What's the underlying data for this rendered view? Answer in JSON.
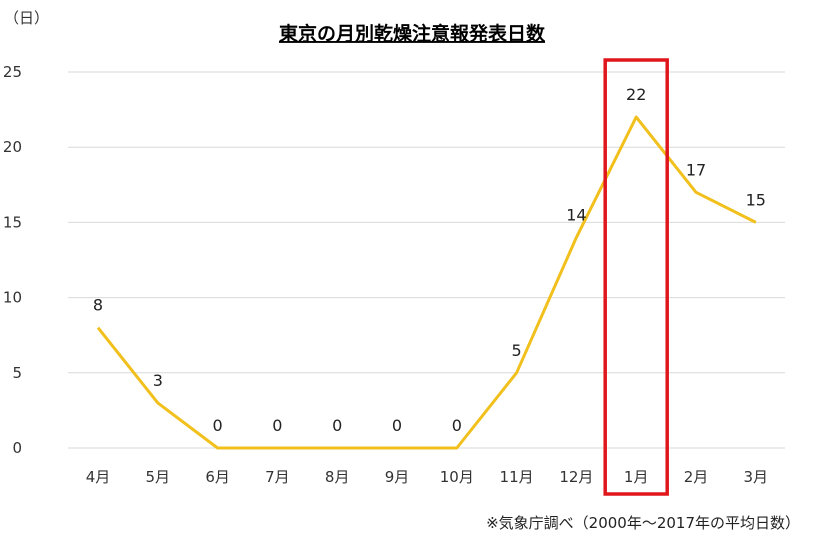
{
  "chart_data": {
    "type": "line",
    "title": "東京の月別乾燥注意報発表日数",
    "unit_label": "（日）",
    "categories": [
      "4月",
      "5月",
      "6月",
      "7月",
      "8月",
      "9月",
      "10月",
      "11月",
      "12月",
      "1月",
      "2月",
      "3月"
    ],
    "series": [
      {
        "values": [
          8,
          3,
          0,
          0,
          0,
          0,
          0,
          5,
          14,
          22,
          17,
          15
        ]
      }
    ],
    "ylim": [
      0,
      25
    ],
    "yticks": [
      0,
      5,
      10,
      15,
      20,
      25
    ],
    "grid": true,
    "highlight_category": "1月",
    "line_color": "#F2C01C",
    "highlight_color": "#E0161D",
    "grid_color": "#D9D9D9"
  },
  "footnote": "※気象庁調べ（2000年〜2017年の平均日数）"
}
